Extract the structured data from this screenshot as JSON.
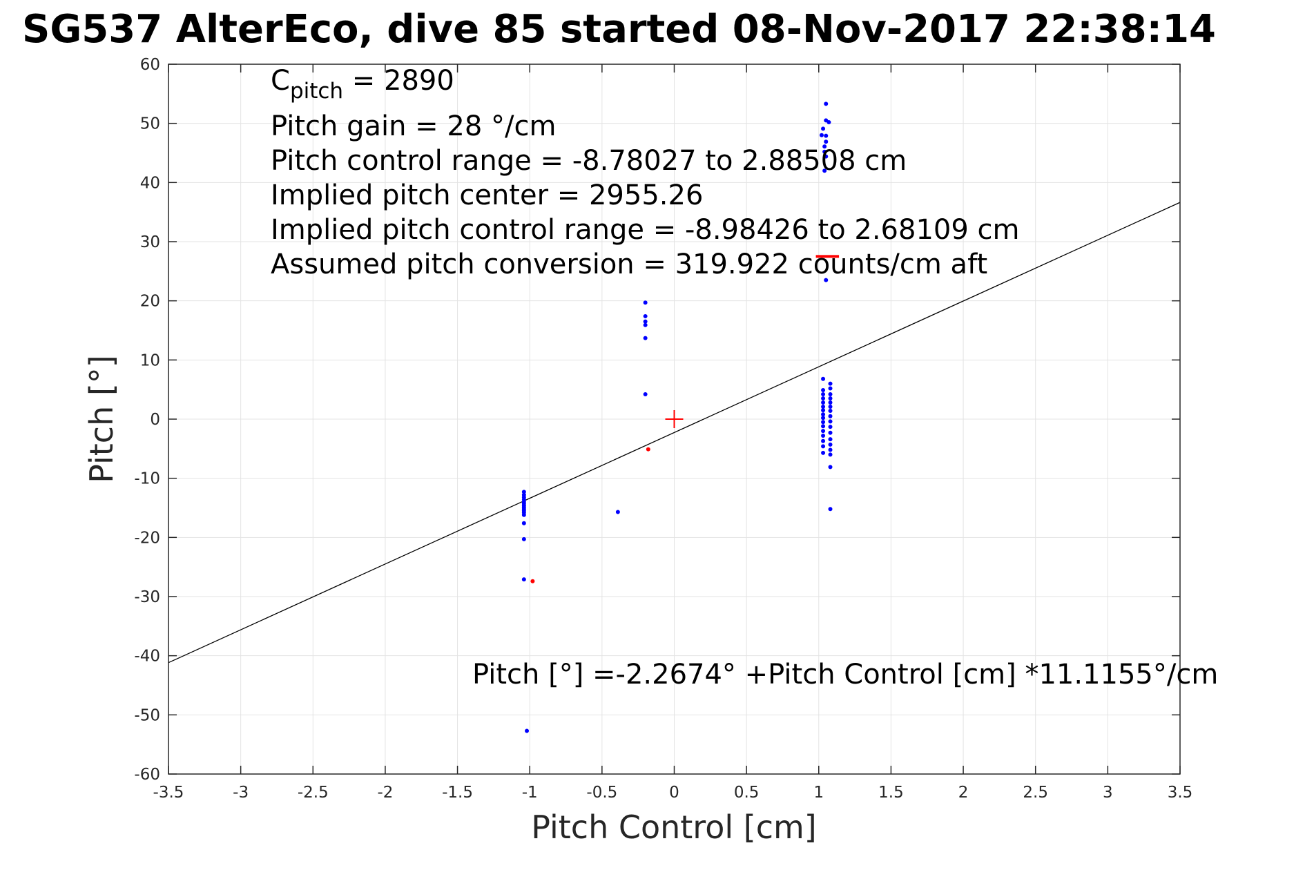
{
  "chart_data": {
    "type": "scatter",
    "title": "SG537 AlterEco, dive 85 started 08-Nov-2017 22:38:14",
    "xlabel": "Pitch Control [cm]",
    "ylabel": "Pitch [°]",
    "xlim": [
      -3.5,
      3.5
    ],
    "ylim": [
      -60,
      60
    ],
    "x_ticks": [
      -3.5,
      -3,
      -2.5,
      -2,
      -1.5,
      -1,
      -0.5,
      0,
      0.5,
      1,
      1.5,
      2,
      2.5,
      3,
      3.5
    ],
    "x_tick_labels": [
      "-3.5",
      "-3",
      "-2.5",
      "-2",
      "-1.5",
      "-1",
      "-0.5",
      "0",
      "0.5",
      "1",
      "1.5",
      "2",
      "2.5",
      "3",
      "3.5"
    ],
    "y_ticks": [
      -60,
      -50,
      -40,
      -30,
      -20,
      -10,
      0,
      10,
      20,
      30,
      40,
      50,
      60
    ],
    "y_tick_labels": [
      "-60",
      "-50",
      "-40",
      "-30",
      "-20",
      "-10",
      "0",
      "10",
      "20",
      "30",
      "40",
      "50",
      "60"
    ],
    "grid": true,
    "annotations": {
      "c_pitch_label": "C",
      "c_pitch_sub": "pitch",
      "c_pitch_value": " = 2890",
      "pitch_gain": "Pitch gain = 28 °/cm",
      "control_range": "Pitch control range = -8.78027 to 2.88508 cm",
      "implied_center": "Implied pitch center = 2955.26",
      "implied_range": "Implied pitch control range = -8.98426 to 2.68109 cm",
      "conversion": "Assumed pitch conversion = 319.922 counts/cm aft",
      "fit_equation": "Pitch [°] =-2.2674° +Pitch Control [cm] *11.1155°/cm"
    },
    "fit_line": {
      "intercept": -2.2674,
      "slope": 11.1155,
      "color": "#000000"
    },
    "series": [
      {
        "color": "#0000ff",
        "points": [
          [
            -1.04,
            -12.3
          ],
          [
            -1.04,
            -12.8
          ],
          [
            -1.04,
            -13.2
          ],
          [
            -1.04,
            -13.6
          ],
          [
            -1.04,
            -14.0
          ],
          [
            -1.04,
            -14.3
          ],
          [
            -1.04,
            -14.6
          ],
          [
            -1.04,
            -14.9
          ],
          [
            -1.04,
            -15.2
          ],
          [
            -1.04,
            -15.5
          ],
          [
            -1.04,
            -15.8
          ],
          [
            -1.04,
            -16.2
          ],
          [
            -1.04,
            -17.6
          ],
          [
            -1.04,
            -20.3
          ],
          [
            -1.04,
            -27.1
          ],
          [
            -1.02,
            -52.7
          ],
          [
            -0.39,
            -15.7
          ],
          [
            -0.2,
            19.7
          ],
          [
            -0.2,
            17.4
          ],
          [
            -0.2,
            16.5
          ],
          [
            -0.2,
            15.9
          ],
          [
            -0.2,
            13.7
          ],
          [
            -0.2,
            4.2
          ],
          [
            1.05,
            53.3
          ],
          [
            1.05,
            50.5
          ],
          [
            1.07,
            50.2
          ],
          [
            1.03,
            49.1
          ],
          [
            1.02,
            48.0
          ],
          [
            1.05,
            47.9
          ],
          [
            1.05,
            46.9
          ],
          [
            1.04,
            46.1
          ],
          [
            1.04,
            45.2
          ],
          [
            1.05,
            44.4
          ],
          [
            1.04,
            42.0
          ],
          [
            1.05,
            23.5
          ],
          [
            1.03,
            6.8
          ],
          [
            1.03,
            4.9
          ],
          [
            1.03,
            4.2
          ],
          [
            1.03,
            3.5
          ],
          [
            1.03,
            2.8
          ],
          [
            1.03,
            2.1
          ],
          [
            1.03,
            1.5
          ],
          [
            1.03,
            0.8
          ],
          [
            1.03,
            0.2
          ],
          [
            1.03,
            -0.5
          ],
          [
            1.03,
            -1.2
          ],
          [
            1.03,
            -2.0
          ],
          [
            1.03,
            -2.8
          ],
          [
            1.03,
            -3.7
          ],
          [
            1.03,
            -4.6
          ],
          [
            1.03,
            -5.7
          ],
          [
            1.08,
            6.0
          ],
          [
            1.08,
            5.2
          ],
          [
            1.08,
            4.2
          ],
          [
            1.08,
            3.5
          ],
          [
            1.08,
            2.8
          ],
          [
            1.08,
            2.1
          ],
          [
            1.08,
            1.4
          ],
          [
            1.08,
            0.5
          ],
          [
            1.08,
            -0.4
          ],
          [
            1.08,
            -1.3
          ],
          [
            1.08,
            -2.3
          ],
          [
            1.08,
            -3.4
          ],
          [
            1.08,
            -4.3
          ],
          [
            1.08,
            -5.2
          ],
          [
            1.08,
            -6.0
          ],
          [
            1.08,
            -8.1
          ],
          [
            1.08,
            -15.2
          ]
        ]
      },
      {
        "color": "#ff0000",
        "points": [
          [
            -0.98,
            -27.4
          ],
          [
            -0.18,
            -5.1
          ]
        ]
      }
    ],
    "center_marker": {
      "x": 0,
      "y": 0,
      "shape": "plus",
      "color": "#ff0000"
    },
    "dash_marker": {
      "x_from": 0.98,
      "x_to": 1.14,
      "y": 27.5,
      "color": "#ff0000"
    }
  }
}
